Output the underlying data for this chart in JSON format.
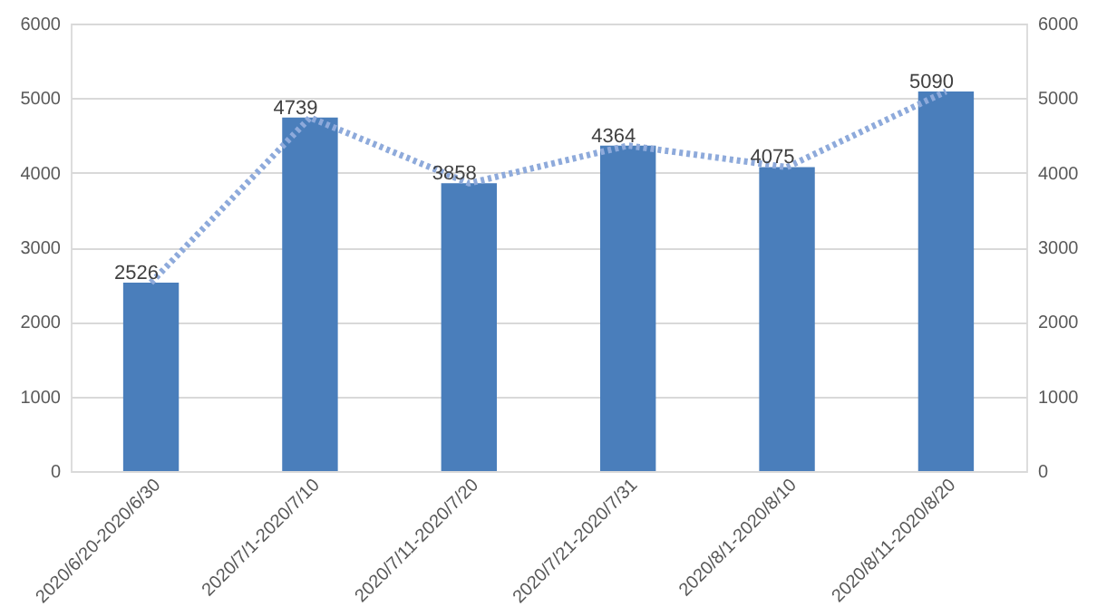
{
  "chart_data": {
    "type": "bar",
    "categories": [
      "2020/6/20-2020/6/30",
      "2020/7/1-2020/7/10",
      "2020/7/11-2020/7/20",
      "2020/7/21-2020/7/31",
      "2020/8/1-2020/8/10",
      "2020/8/11-2020/8/20"
    ],
    "series": [
      {
        "color": "#4a7ebb",
        "values": [
          2526,
          4739,
          3858,
          4364,
          4075,
          5090
        ]
      },
      {
        "type": "line",
        "axis": "y2",
        "color": "#8eaadb",
        "line_style": "dotted",
        "values": [
          2526,
          4739,
          3858,
          4364,
          4075,
          5090
        ],
        "value_labels": [
          "2526",
          "4739",
          "3858",
          "4364",
          "4075",
          "5090"
        ]
      }
    ],
    "ylim": [
      0,
      6000
    ],
    "yticks": [
      0,
      1000,
      2000,
      3000,
      4000,
      5000,
      6000
    ],
    "y2lim": [
      0,
      6000
    ],
    "y2ticks": [
      0,
      1000,
      2000,
      3000,
      4000,
      5000,
      6000
    ],
    "grid": "y"
  }
}
